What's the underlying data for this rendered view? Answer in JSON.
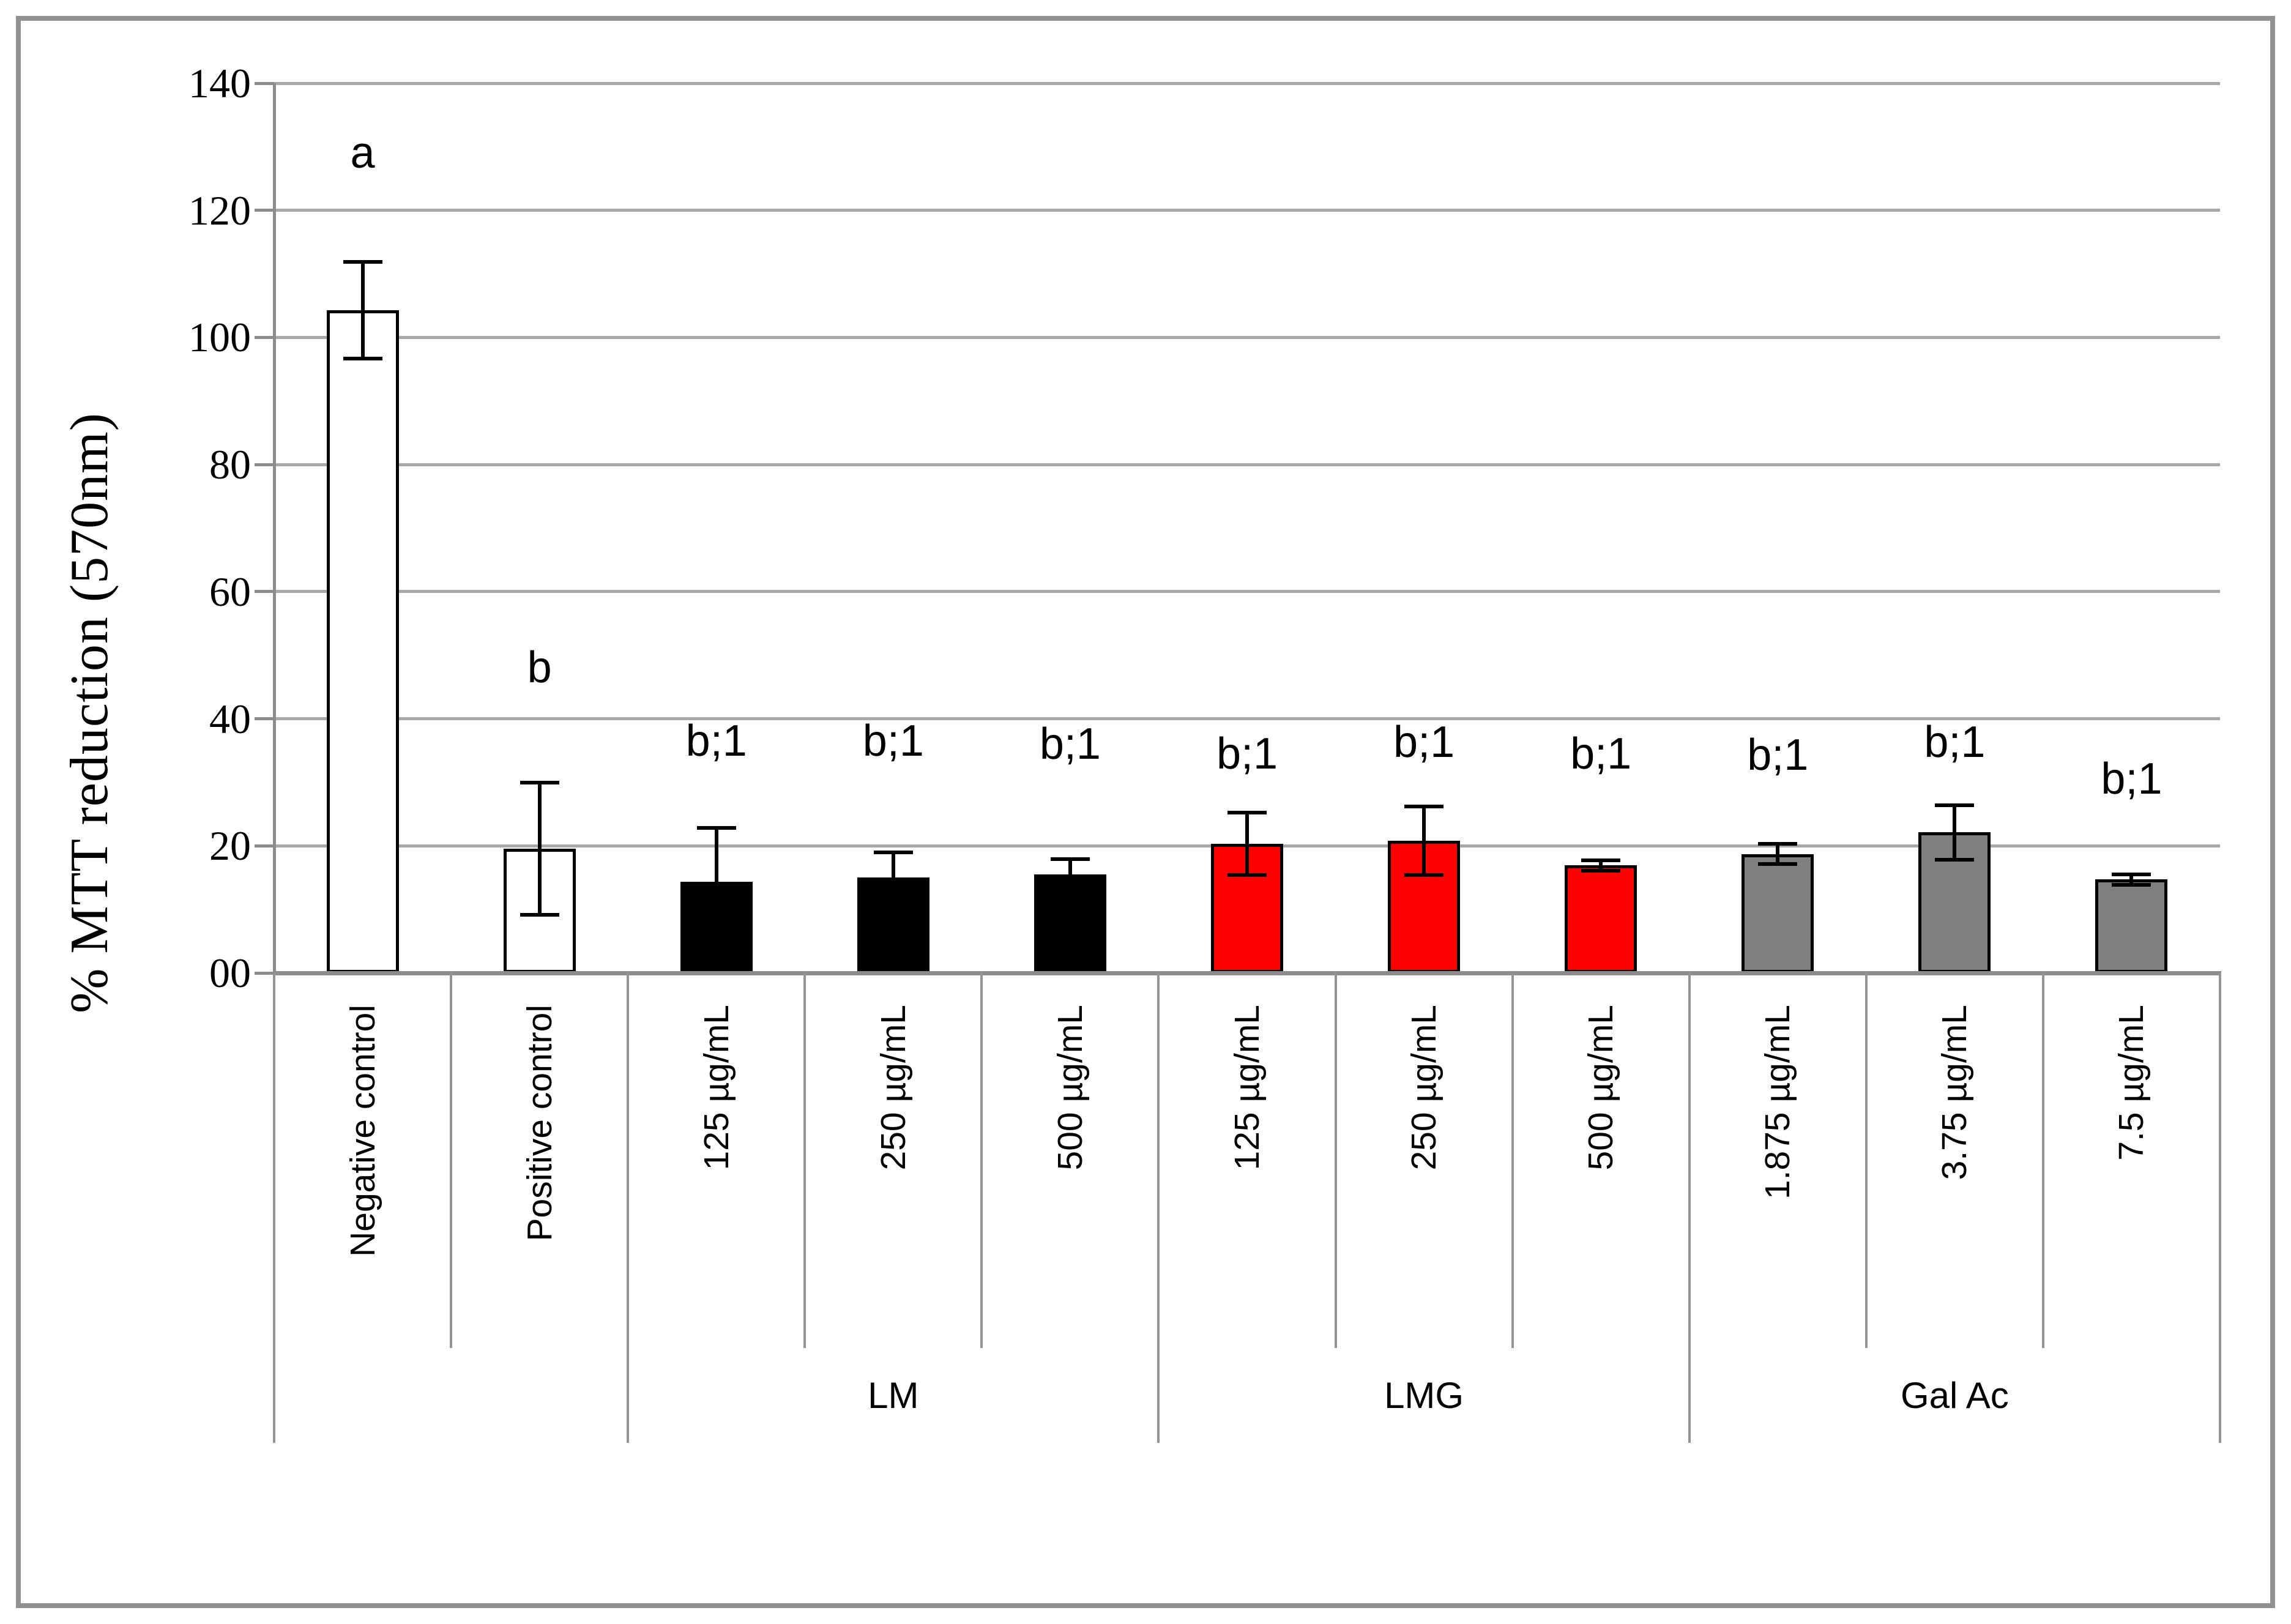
{
  "figure": {
    "background": "#ffffff",
    "border_color": "#919191",
    "plot_background": "#ffffff"
  },
  "chart_data": {
    "type": "bar",
    "title": "",
    "xlabel": "",
    "ylabel": "% MTT reduction (570nm)",
    "ylim": [
      0,
      140
    ],
    "ytick_step": 20,
    "yticks": [
      {
        "value": 0,
        "label": "00"
      },
      {
        "value": 20,
        "label": "20"
      },
      {
        "value": 40,
        "label": "40"
      },
      {
        "value": 60,
        "label": "60"
      },
      {
        "value": 80,
        "label": "80"
      },
      {
        "value": 100,
        "label": "100"
      },
      {
        "value": 120,
        "label": "120"
      },
      {
        "value": 140,
        "label": "140"
      }
    ],
    "grid": true,
    "legend": "none",
    "gridline_color": "#a8a8a8",
    "axis_color": "#8c8c8c",
    "separator_color": "#949494",
    "bar_outline_color": "#000000",
    "error_bar_color": "#000000",
    "categories": [
      "Negative control",
      "Positive control",
      "125 µg/mL",
      "250 µg/mL",
      "500 µg/mL",
      "125 µg/mL",
      "250 µg/mL",
      "500 µg/mL",
      "1.875 µg/mL",
      "3.75 µg/mL",
      "7.5 µg/mL"
    ],
    "group_labels": [
      "LM",
      "LMG",
      "Gal Ac"
    ],
    "bars": [
      {
        "label": "Negative control",
        "group": "",
        "value": 104.3,
        "error": 7.6,
        "fill": "#ffffff",
        "annotation": "a",
        "annotation_y": 129
      },
      {
        "label": "Positive control",
        "group": "",
        "value": 19.5,
        "error": 10.4,
        "fill": "#ffffff",
        "annotation": "b",
        "annotation_y": 48
      },
      {
        "label": "125 µg/mL",
        "group": "LM",
        "value": 14.3,
        "error": 8.5,
        "fill": "#000000",
        "annotation": "b;1",
        "annotation_y": 36.5
      },
      {
        "label": "250 µg/mL",
        "group": "LM",
        "value": 15.0,
        "error": 4.0,
        "fill": "#000000",
        "annotation": "b;1",
        "annotation_y": 36.5
      },
      {
        "label": "500 µg/mL",
        "group": "LM",
        "value": 15.5,
        "error": 2.4,
        "fill": "#000000",
        "annotation": "b;1",
        "annotation_y": 36.0
      },
      {
        "label": "125 µg/mL",
        "group": "LMG",
        "value": 20.3,
        "error": 4.9,
        "fill": "#ff0000",
        "annotation": "b;1",
        "annotation_y": 34.5
      },
      {
        "label": "250 µg/mL",
        "group": "LMG",
        "value": 20.8,
        "error": 5.4,
        "fill": "#ff0000",
        "annotation": "b;1",
        "annotation_y": 36.3
      },
      {
        "label": "500 µg/mL",
        "group": "LMG",
        "value": 16.9,
        "error": 0.8,
        "fill": "#ff0000",
        "annotation": "b;1",
        "annotation_y": 34.5
      },
      {
        "label": "1.875 µg/mL",
        "group": "Gal Ac",
        "value": 18.7,
        "error": 1.6,
        "fill": "#7f7f7f",
        "annotation": "b;1",
        "annotation_y": 34.3
      },
      {
        "label": "3.75 µg/mL",
        "group": "Gal Ac",
        "value": 22.1,
        "error": 4.3,
        "fill": "#7f7f7f",
        "annotation": "b;1",
        "annotation_y": 36.3
      },
      {
        "label": "7.5 µg/mL",
        "group": "Gal Ac",
        "value": 14.7,
        "error": 0.8,
        "fill": "#7f7f7f",
        "annotation": "b;1",
        "annotation_y": 30.5
      }
    ]
  }
}
